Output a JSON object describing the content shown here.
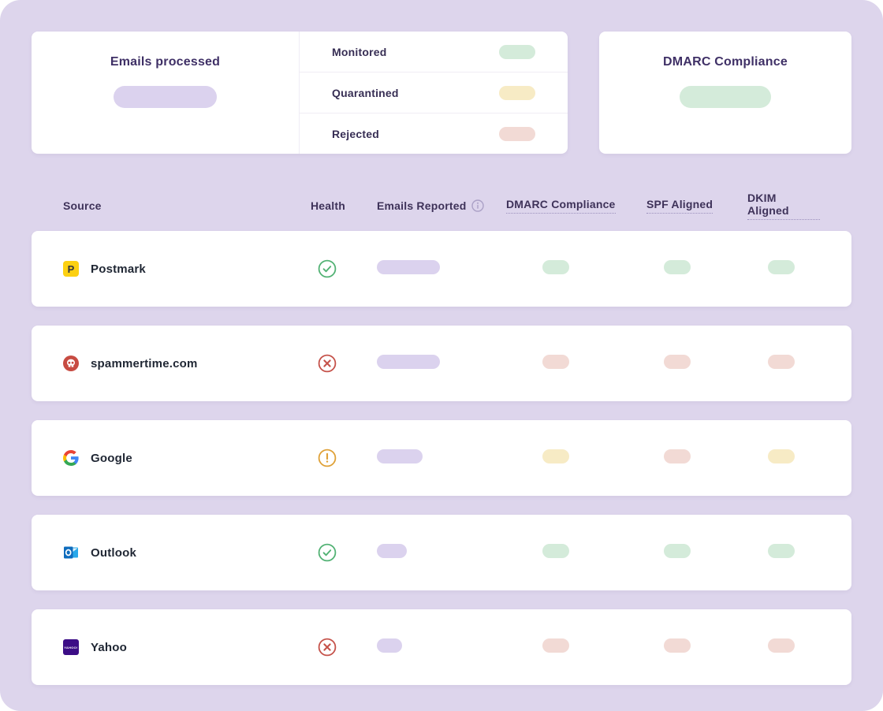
{
  "theme": {
    "page_bg": "#ddd5ec",
    "pill_purple": "#dbd2ee",
    "pill_green": "#d4ebda",
    "pill_yellow": "#f7ebc5",
    "pill_red": "#f2dad5",
    "health_green": "#52b274",
    "health_red": "#c5524a",
    "health_orange": "#dfa137"
  },
  "summary": {
    "emails_processed": {
      "title": "Emails processed",
      "value_skeleton": "purple"
    },
    "legend": {
      "items": [
        {
          "label": "Monitored",
          "status": "green"
        },
        {
          "label": "Quarantined",
          "status": "yellow"
        },
        {
          "label": "Rejected",
          "status": "red"
        }
      ]
    },
    "dmarc_compliance": {
      "title": "DMARC Compliance",
      "value_skeleton": "green"
    }
  },
  "table": {
    "columns": [
      {
        "label": "Source"
      },
      {
        "label": "Health"
      },
      {
        "label": "Emails Reported",
        "has_info_icon": true
      },
      {
        "label": "DMARC Compliance",
        "dotted_underline": true
      },
      {
        "label": "SPF Aligned",
        "dotted_underline": true
      },
      {
        "label": "DKIM Aligned",
        "dotted_underline": true
      }
    ],
    "rows": [
      {
        "source": "Postmark",
        "icon": "postmark-icon",
        "health": "healthy",
        "emails_reported_skeleton_width": 80,
        "dmarc_compliance": "green",
        "spf_aligned": "green",
        "dkim_aligned": "green"
      },
      {
        "source": "spammertime.com",
        "icon": "spam-icon",
        "health": "error",
        "emails_reported_skeleton_width": 80,
        "dmarc_compliance": "red",
        "spf_aligned": "red",
        "dkim_aligned": "red"
      },
      {
        "source": "Google",
        "icon": "google-icon",
        "health": "warning",
        "emails_reported_skeleton_width": 58,
        "dmarc_compliance": "yellow",
        "spf_aligned": "red",
        "dkim_aligned": "yellow"
      },
      {
        "source": "Outlook",
        "icon": "outlook-icon",
        "health": "healthy",
        "emails_reported_skeleton_width": 38,
        "dmarc_compliance": "green",
        "spf_aligned": "green",
        "dkim_aligned": "green"
      },
      {
        "source": "Yahoo",
        "icon": "yahoo-icon",
        "health": "error",
        "emails_reported_skeleton_width": 32,
        "dmarc_compliance": "red",
        "spf_aligned": "red",
        "dkim_aligned": "red"
      }
    ]
  }
}
